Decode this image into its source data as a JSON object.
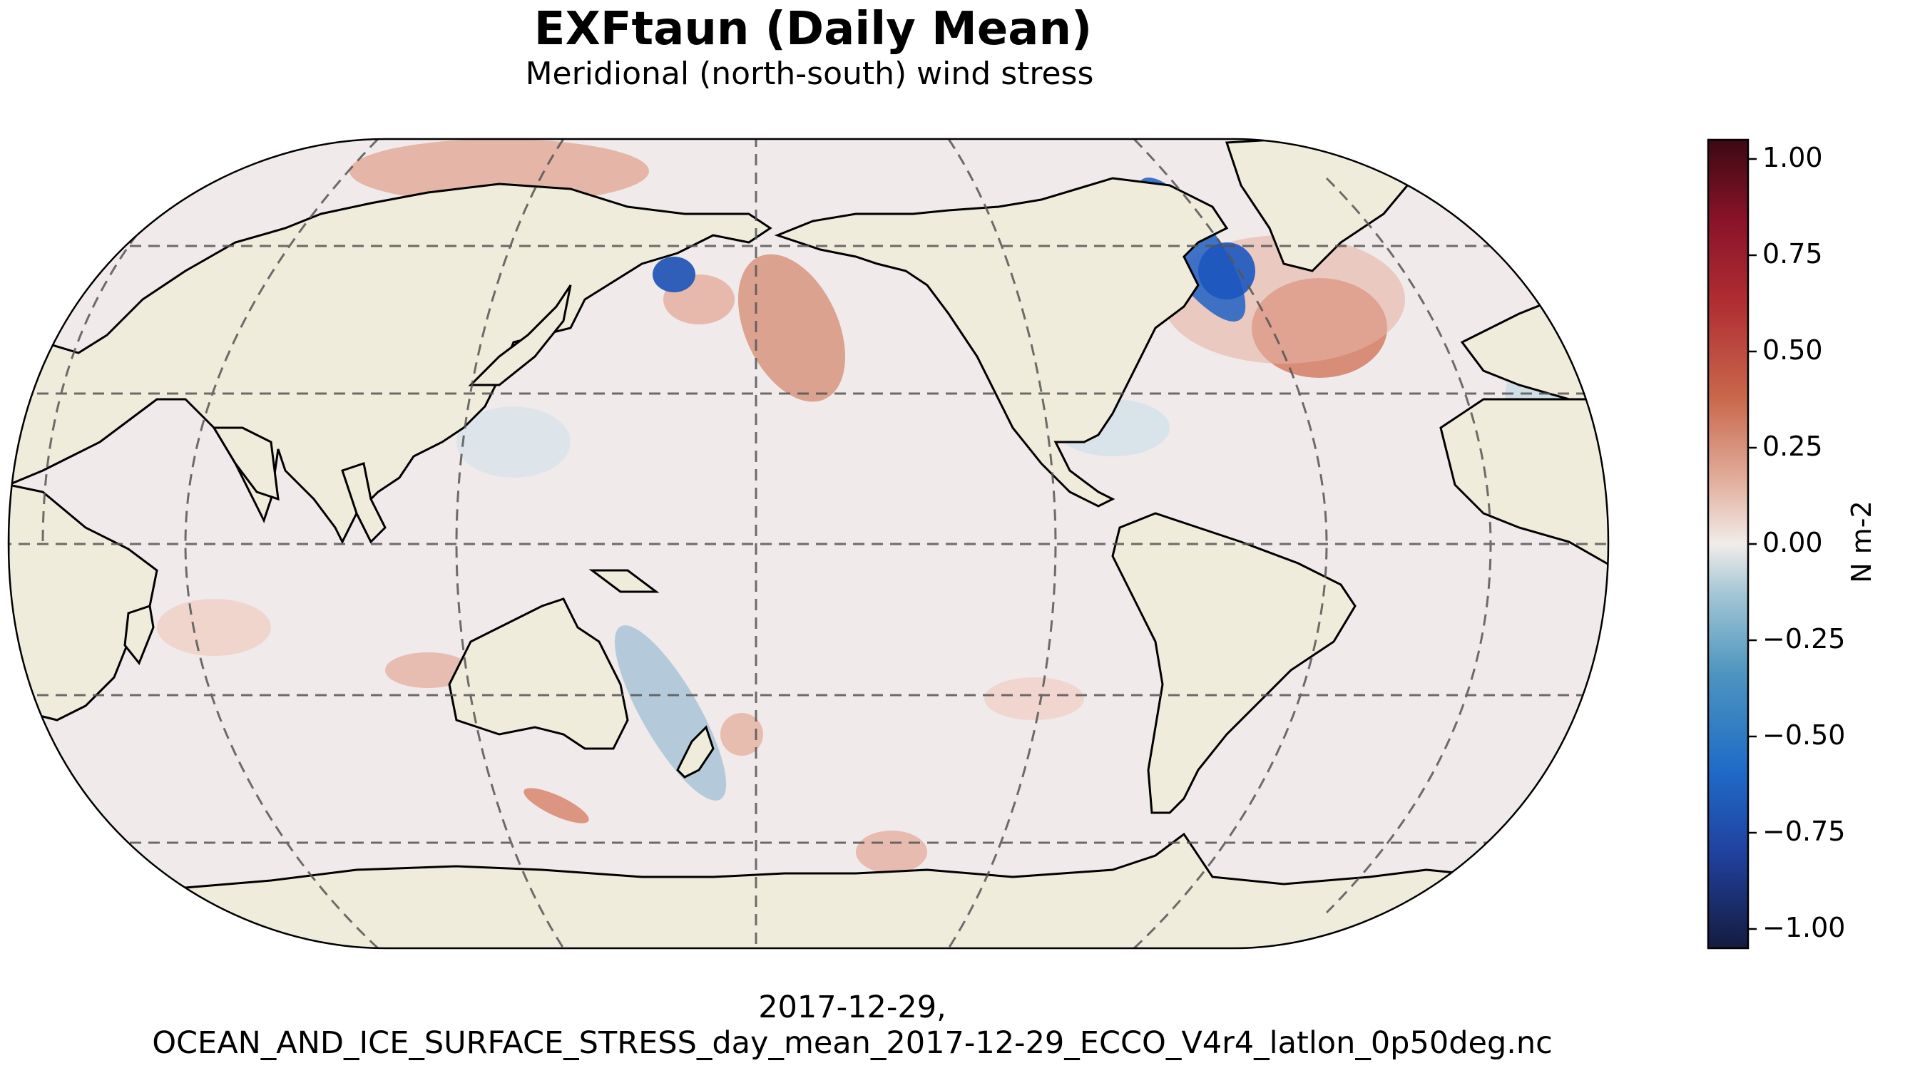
{
  "title": "EXFtaun (Daily Mean)",
  "subtitle": "Meridional (north-south) wind stress",
  "footer": {
    "line1": "2017-12-29,",
    "line2": "OCEAN_AND_ICE_SURFACE_STRESS_day_mean_2017-12-29_ECCO_V4r4_latlon_0p50deg.nc"
  },
  "colorbar": {
    "label": "N m-2",
    "range": [
      -1.05,
      1.05
    ],
    "ticks": [
      "1.00",
      "0.75",
      "0.50",
      "0.25",
      "0.00",
      "−0.25",
      "−0.50",
      "−0.75",
      "−1.00"
    ],
    "tick_values": [
      1.0,
      0.75,
      0.5,
      0.25,
      0.0,
      -0.25,
      -0.5,
      -0.75,
      -1.0
    ],
    "colormap": "balance (blue → white → red)"
  },
  "map": {
    "projection": "Robinson",
    "central_longitude": -180,
    "land_color": "#efecdb",
    "gridlines": "dashed",
    "variable": "EXFtaun",
    "date": "2017-12-29"
  }
}
